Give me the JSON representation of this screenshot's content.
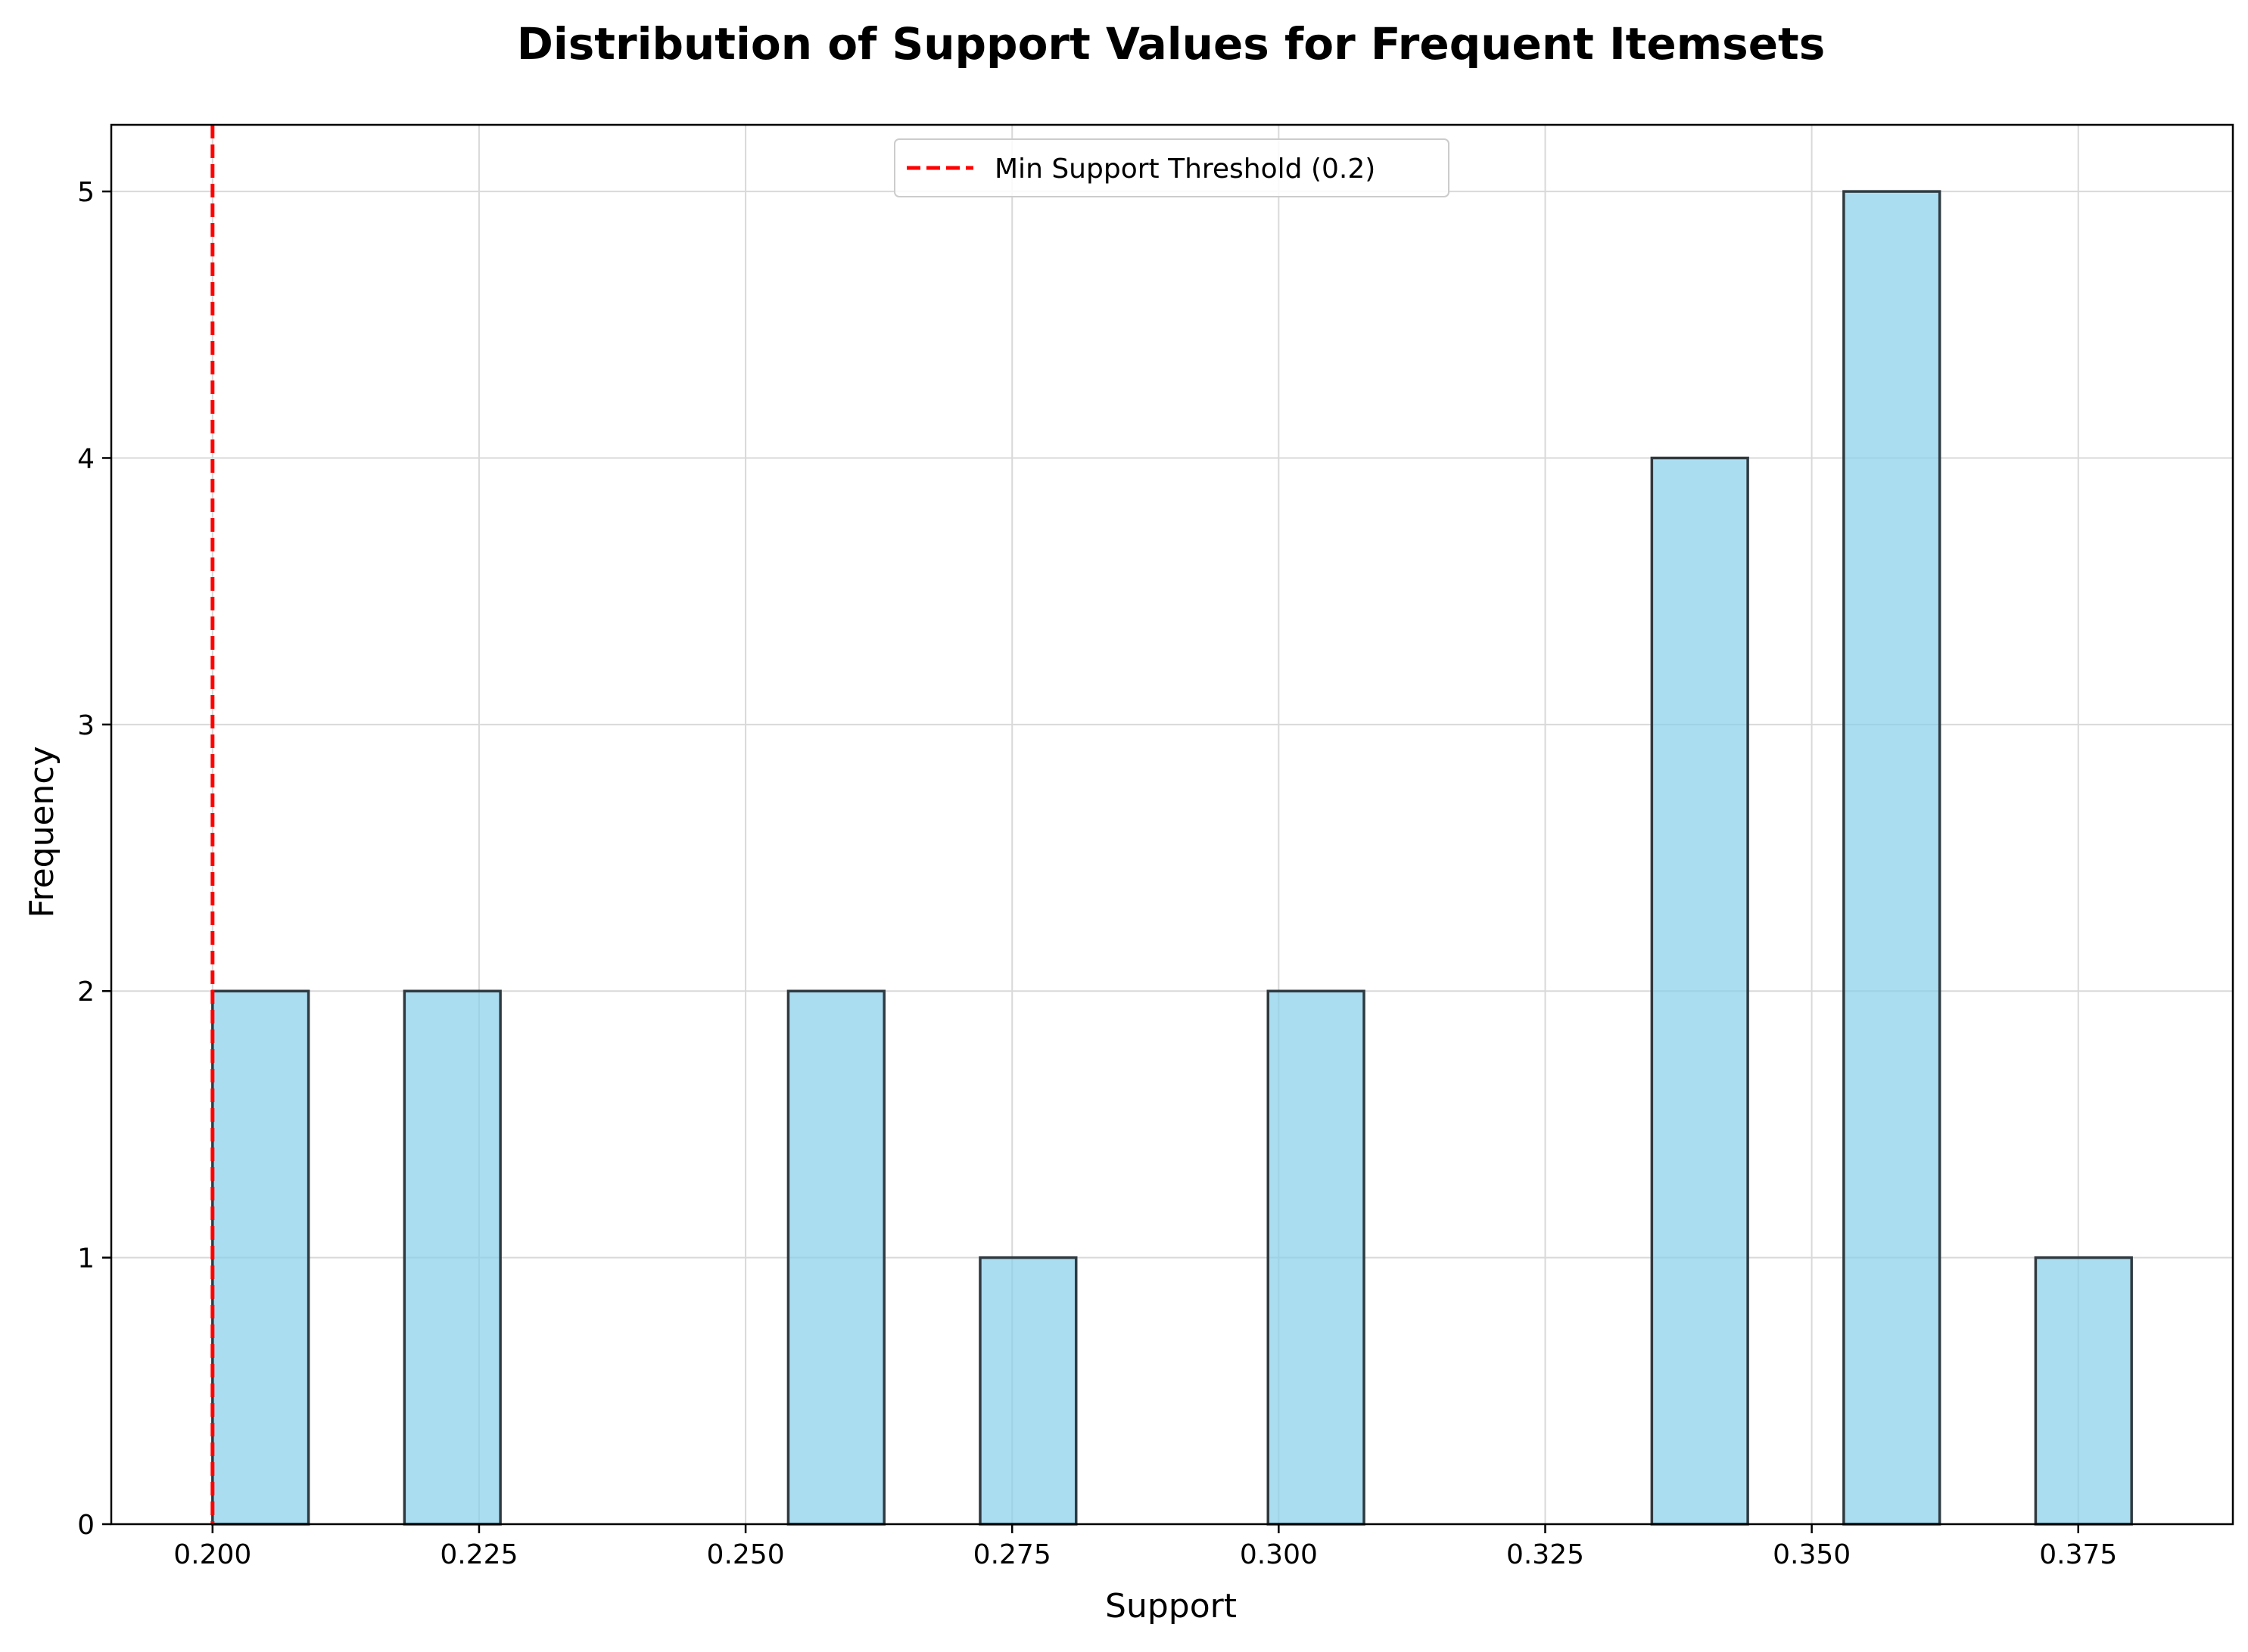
{
  "chart_data": {
    "type": "bar",
    "title": "Distribution of Support Values for Frequent Itemsets",
    "xlabel": "Support",
    "ylabel": "Frequency",
    "xlim": [
      0.1905,
      0.3895
    ],
    "ylim": [
      0,
      5.25
    ],
    "bin_width": 0.009,
    "bins": [
      {
        "start": 0.2,
        "end": 0.209,
        "count": 2
      },
      {
        "start": 0.218,
        "end": 0.227,
        "count": 2
      },
      {
        "start": 0.254,
        "end": 0.263,
        "count": 2
      },
      {
        "start": 0.272,
        "end": 0.281,
        "count": 1
      },
      {
        "start": 0.299,
        "end": 0.308,
        "count": 2
      },
      {
        "start": 0.335,
        "end": 0.344,
        "count": 4
      },
      {
        "start": 0.353,
        "end": 0.362,
        "count": 5
      },
      {
        "start": 0.371,
        "end": 0.38,
        "count": 1
      }
    ],
    "x_ticks": [
      {
        "value": 0.2,
        "label": "0.200"
      },
      {
        "value": 0.225,
        "label": "0.225"
      },
      {
        "value": 0.25,
        "label": "0.250"
      },
      {
        "value": 0.275,
        "label": "0.275"
      },
      {
        "value": 0.3,
        "label": "0.300"
      },
      {
        "value": 0.325,
        "label": "0.325"
      },
      {
        "value": 0.35,
        "label": "0.350"
      },
      {
        "value": 0.375,
        "label": "0.375"
      }
    ],
    "y_ticks": [
      {
        "value": 0,
        "label": "0"
      },
      {
        "value": 1,
        "label": "1"
      },
      {
        "value": 2,
        "label": "2"
      },
      {
        "value": 3,
        "label": "3"
      },
      {
        "value": 4,
        "label": "4"
      },
      {
        "value": 5,
        "label": "5"
      }
    ],
    "threshold": {
      "value": 0.2,
      "label": "Min Support Threshold (0.2)",
      "color": "#ff0000",
      "style": "dashed"
    },
    "legend": {
      "placement": "upper-center"
    },
    "grid": true,
    "colors": {
      "bar_fill": "#87ceeb",
      "bar_edge": "#2f3a40",
      "grid": "#d9d9d9",
      "axis": "#000000"
    }
  }
}
